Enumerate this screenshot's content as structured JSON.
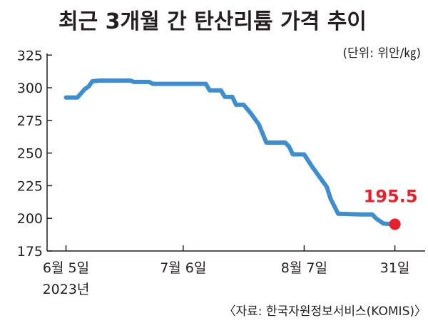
{
  "chart_data": {
    "type": "line",
    "title": "최근 3개월 간 탄산리튬 가격 추이",
    "unit": "(단위: 위안/㎏)",
    "source": "〈자료: 한국자원정보서비스(KOMIS)〉",
    "x_ticks": [
      {
        "day": 0,
        "label": "6월 5일",
        "sublabel": "2023년"
      },
      {
        "day": 31,
        "label": "7월 6일",
        "sublabel": ""
      },
      {
        "day": 63,
        "label": "8월 7일",
        "sublabel": ""
      },
      {
        "day": 87,
        "label": "31일",
        "sublabel": ""
      }
    ],
    "y_ticks": [
      175,
      200,
      225,
      250,
      275,
      300,
      325
    ],
    "ylim": [
      175,
      335
    ],
    "xlim": [
      -5,
      95
    ],
    "last_label": "195.5",
    "series": [
      {
        "color": "#3d8ed0",
        "points": [
          [
            0,
            292.5
          ],
          [
            3,
            292.5
          ],
          [
            5,
            299
          ],
          [
            6,
            301
          ],
          [
            7,
            305
          ],
          [
            9,
            305.5
          ],
          [
            13,
            305.5
          ],
          [
            16,
            305.5
          ],
          [
            17,
            305.5
          ],
          [
            18,
            304.5
          ],
          [
            22,
            304.5
          ],
          [
            23,
            303
          ],
          [
            27,
            303
          ],
          [
            37,
            303
          ],
          [
            38,
            298
          ],
          [
            41,
            298
          ],
          [
            42,
            293
          ],
          [
            44,
            293
          ],
          [
            45,
            287
          ],
          [
            47,
            287
          ],
          [
            49,
            280
          ],
          [
            51,
            272
          ],
          [
            52,
            265
          ],
          [
            53,
            258
          ],
          [
            56,
            258
          ],
          [
            58,
            258
          ],
          [
            59,
            255
          ],
          [
            60,
            249
          ],
          [
            63,
            249
          ],
          [
            65,
            240
          ],
          [
            67,
            232
          ],
          [
            69,
            224
          ],
          [
            70,
            215
          ],
          [
            72,
            203.5
          ],
          [
            78,
            203
          ],
          [
            81,
            203
          ],
          [
            82,
            200
          ],
          [
            83,
            198
          ],
          [
            84,
            196
          ]
        ]
      }
    ],
    "last_point": [
      87,
      195.5
    ],
    "last_point_color": "#e8202a"
  }
}
